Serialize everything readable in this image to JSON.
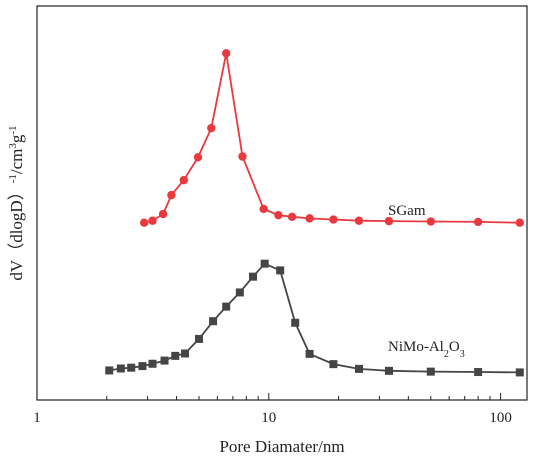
{
  "chart_data": {
    "type": "line",
    "xlabel": "Pore Diamater/nm",
    "ylabel": "dV（dlogD） -1/cm3g-1",
    "xscale": "log",
    "xlim": [
      1,
      130
    ],
    "ylim": [
      0,
      1.0
    ],
    "y_ticks_shown": false,
    "grid": false,
    "x_ticks": [
      {
        "value": 1,
        "label": "1"
      },
      {
        "value": 10,
        "label": "10"
      },
      {
        "value": 100,
        "label": "100"
      }
    ],
    "series": [
      {
        "name": "SGam",
        "color": "#e8393e",
        "marker": "circle",
        "x": [
          2.9,
          3.15,
          3.5,
          3.8,
          4.3,
          4.95,
          5.65,
          6.55,
          7.7,
          9.5,
          11.0,
          12.6,
          15.0,
          19.0,
          24.5,
          33.0,
          50.0,
          80.0,
          121.0
        ],
        "y": [
          0.45,
          0.455,
          0.472,
          0.52,
          0.558,
          0.616,
          0.69,
          0.88,
          0.618,
          0.485,
          0.469,
          0.465,
          0.461,
          0.458,
          0.455,
          0.454,
          0.453,
          0.452,
          0.45
        ]
      },
      {
        "name": "NiMo-Al2O3",
        "color": "#454545",
        "marker": "square",
        "x": [
          2.05,
          2.3,
          2.55,
          2.85,
          3.15,
          3.55,
          3.95,
          4.35,
          5.0,
          5.75,
          6.55,
          7.5,
          8.55,
          9.6,
          11.2,
          13.0,
          15.0,
          19.0,
          24.5,
          33.0,
          50.0,
          80.0,
          121.0
        ],
        "y": [
          0.075,
          0.08,
          0.082,
          0.086,
          0.092,
          0.1,
          0.112,
          0.118,
          0.155,
          0.2,
          0.237,
          0.273,
          0.313,
          0.346,
          0.329,
          0.196,
          0.117,
          0.091,
          0.079,
          0.074,
          0.072,
          0.071,
          0.07
        ]
      }
    ],
    "annotations": [
      {
        "text": "SGam",
        "x": 36,
        "y": 0.5
      },
      {
        "text": "NiMo-Al2O3",
        "x": 36,
        "y": 0.13
      }
    ]
  }
}
